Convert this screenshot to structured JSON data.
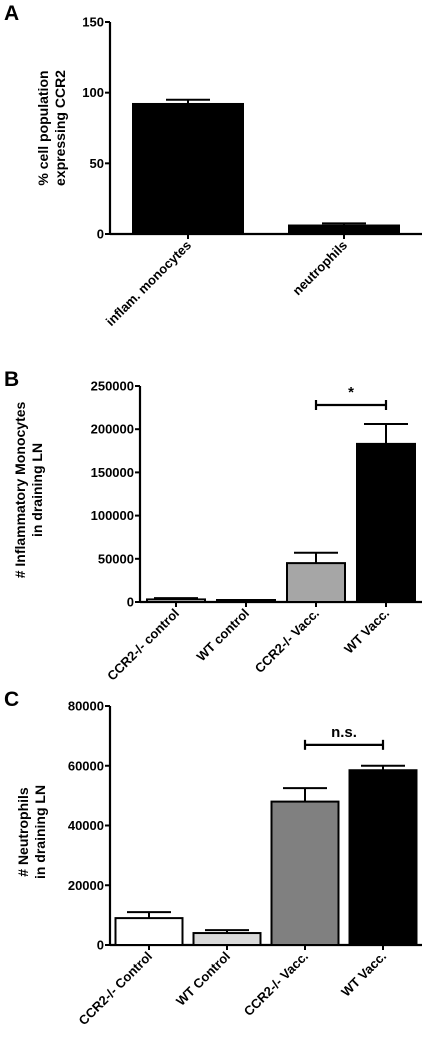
{
  "chart_data": [
    {
      "type": "bar",
      "panel": "A",
      "ylabel_lines": [
        "% cell population",
        "expressing CCR2"
      ],
      "ylim": [
        0,
        150
      ],
      "yticks": [
        "0",
        "50",
        "100",
        "150"
      ],
      "categories": [
        "inflam. monocytes",
        "neutrophils"
      ],
      "values": [
        92,
        6
      ],
      "errors": [
        3,
        1.5
      ],
      "colors": [
        "#000000",
        "#000000"
      ],
      "legend": "none",
      "grid": false
    },
    {
      "type": "bar",
      "panel": "B",
      "ylabel_lines": [
        "# Inflammatory Monocytes",
        "in draining LN"
      ],
      "ylim": [
        0,
        250000
      ],
      "yticks": [
        "0",
        "50000",
        "100000",
        "150000",
        "200000",
        "250000"
      ],
      "categories": [
        "CCR2-/- control",
        "WT control",
        "CCR2-/- Vacc.",
        "WT Vacc."
      ],
      "values": [
        3000,
        1000,
        45000,
        183000
      ],
      "errors": [
        1500,
        500,
        12000,
        23000
      ],
      "colors": [
        "#ffffff",
        "#ffffff",
        "#a6a6a6",
        "#000000"
      ],
      "significance": {
        "from": 2,
        "to": 3,
        "label": "*",
        "y": 228000
      },
      "legend": "none",
      "grid": false
    },
    {
      "type": "bar",
      "panel": "C",
      "ylabel_lines": [
        "# Neutrophils",
        "in draining  LN"
      ],
      "ylim": [
        0,
        80000
      ],
      "yticks": [
        "0",
        "20000",
        "40000",
        "60000",
        "80000"
      ],
      "categories": [
        "CCR2-/- Control",
        "WT Control",
        "CCR2-/- Vacc.",
        "WT Vacc."
      ],
      "values": [
        9000,
        4000,
        48000,
        58500
      ],
      "errors": [
        2000,
        1000,
        4500,
        1500
      ],
      "colors": [
        "#ffffff",
        "#d9d9d9",
        "#808080",
        "#000000"
      ],
      "significance": {
        "from": 2,
        "to": 3,
        "label": "n.s.",
        "y": 67000
      },
      "legend": "none",
      "grid": false
    }
  ]
}
